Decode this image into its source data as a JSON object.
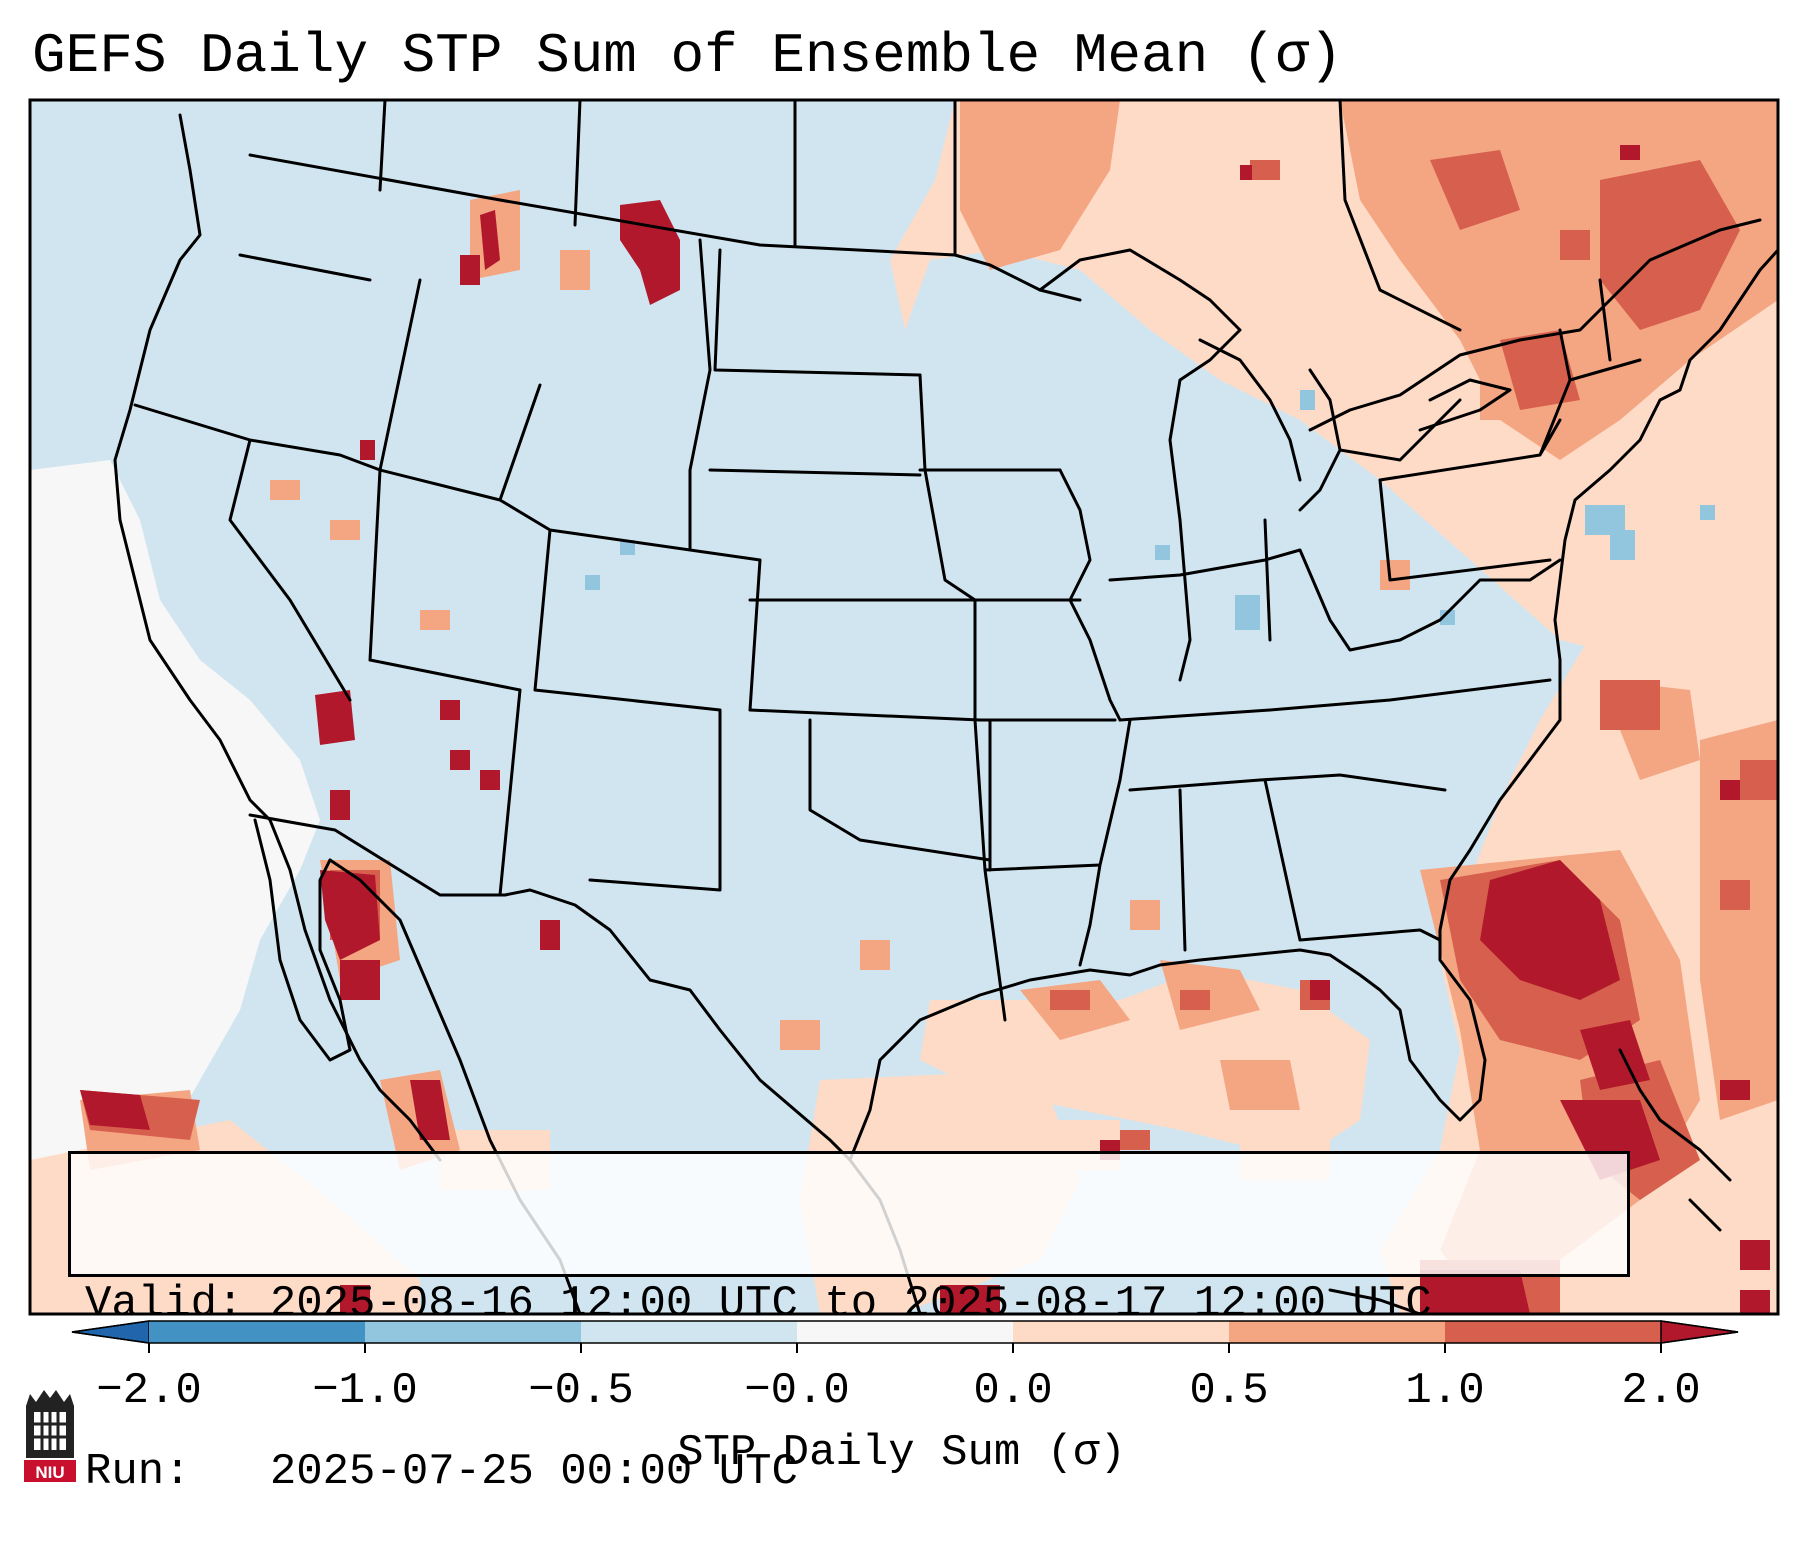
{
  "title": "GEFS Daily STP Sum of Ensemble Mean (σ)",
  "info": {
    "valid_line": "Valid: 2025-08-16 12:00 UTC to 2025-08-17 12:00 UTC",
    "run_line": "Run:   2025-07-25 00:00 UTC"
  },
  "colorbar": {
    "label": "STP Daily Sum (σ)",
    "ticks": [
      "−2.0",
      "−1.0",
      "−0.5",
      "−0.0",
      "0.0",
      "0.5",
      "1.0",
      "2.0"
    ],
    "bins": [
      {
        "from": -2.0,
        "to": -1.0,
        "color": "#4392c4"
      },
      {
        "from": -1.0,
        "to": -0.5,
        "color": "#92c5de"
      },
      {
        "from": -0.5,
        "to": -0.0,
        "color": "#d1e5f0"
      },
      {
        "from": -0.0,
        "to": 0.0,
        "color": "#f7f7f7"
      },
      {
        "from": 0.0,
        "to": 0.5,
        "color": "#fddbc7"
      },
      {
        "from": 0.5,
        "to": 1.0,
        "color": "#f4a582"
      },
      {
        "from": 1.0,
        "to": 2.0,
        "color": "#d6604d"
      }
    ],
    "under_color": "#2166ac",
    "over_color": "#b2182b"
  },
  "map": {
    "background_color": "#d1e5f0",
    "region": "Contiguous United States, southern Canada, northern Mexico, Gulf of Mexico, western Atlantic"
  },
  "logo": {
    "text": "NIU",
    "name": "Northern Illinois University"
  }
}
